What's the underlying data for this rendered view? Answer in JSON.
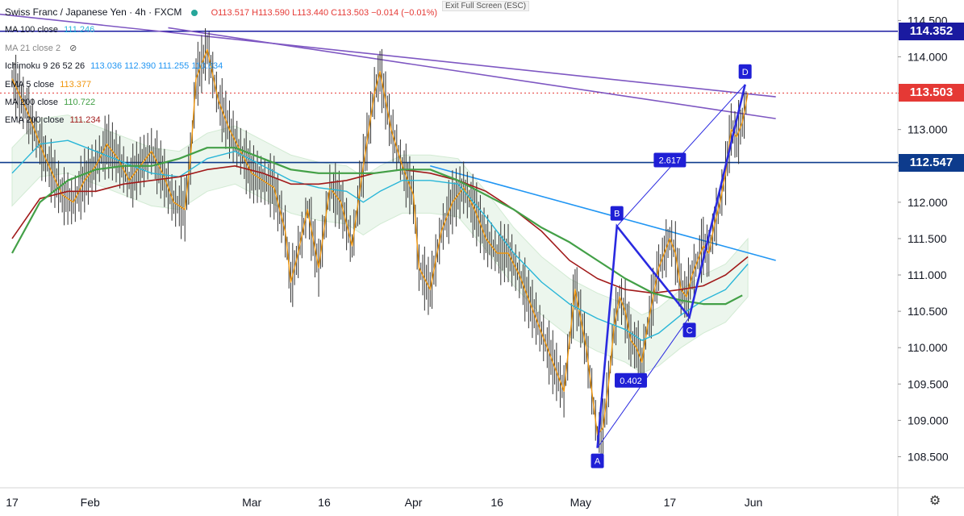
{
  "header": {
    "symbol": "Swiss Franc / Japanese Yen · 4h · FXCM",
    "ohlc": "O113.517  H113.590  L113.440  C113.503  −0.014 (−0.01%)",
    "exit_full_screen": "Exit Full Screen (ESC)"
  },
  "legend": [
    {
      "label": "MA 100 close",
      "value": "111.246",
      "color": "#29b6d8"
    },
    {
      "label": "MA 21 close 2",
      "value": "",
      "color": "#888888"
    },
    {
      "label": "Ichimoku 9 26 52 26",
      "value": "113.036  112.390  111.255  110.834",
      "color": "#2196f3"
    },
    {
      "label": "EMA 5 close",
      "value": "113.377",
      "color": "#f0960c"
    },
    {
      "label": "MA 200 close",
      "value": "110.722",
      "color": "#43a047"
    },
    {
      "label": "EMA 200 close",
      "value": "111.234",
      "color": "#a11a1a"
    }
  ],
  "price_tags": [
    {
      "value": "114.352",
      "color": "#1a1aa0",
      "price": 114.352
    },
    {
      "value": "113.503",
      "color": "#e53935",
      "price": 113.503
    },
    {
      "value": "112.547",
      "color": "#0d3b8c",
      "price": 112.547
    }
  ],
  "chart_data": {
    "type": "line",
    "title": "Swiss Franc / Japanese Yen · 4h · FXCM",
    "ylim": [
      108.25,
      114.56
    ],
    "y_ticks": [
      108.5,
      109.0,
      109.5,
      110.0,
      110.5,
      111.0,
      111.5,
      112.0,
      112.5,
      113.0,
      113.5,
      114.0,
      114.5
    ],
    "y_tick_labels": [
      "108.500",
      "109.000",
      "109.500",
      "110.000",
      "110.500",
      "111.000",
      "111.500",
      "112.000",
      "112.500",
      "113.000",
      "113.500",
      "114.000",
      "114.500"
    ],
    "x_ticks": [
      {
        "label": "17",
        "t": 0
      },
      {
        "label": "Feb",
        "t": 14
      },
      {
        "label": "Mar",
        "t": 43
      },
      {
        "label": "16",
        "t": 56
      },
      {
        "label": "Apr",
        "t": 72
      },
      {
        "label": "16",
        "t": 87
      },
      {
        "label": "May",
        "t": 102
      },
      {
        "label": "17",
        "t": 118
      },
      {
        "label": "Jun",
        "t": 133
      }
    ],
    "series": [
      {
        "name": "EMA 5 close",
        "color": "#f0960c",
        "width": 1.4,
        "values": [
          [
            0,
            113.7
          ],
          [
            3,
            113.2
          ],
          [
            6,
            112.6
          ],
          [
            9,
            112.1
          ],
          [
            11,
            112.0
          ],
          [
            13,
            112.3
          ],
          [
            15,
            112.5
          ],
          [
            17,
            112.8
          ],
          [
            19,
            112.6
          ],
          [
            21,
            112.3
          ],
          [
            23,
            112.5
          ],
          [
            25,
            112.7
          ],
          [
            27,
            112.4
          ],
          [
            29,
            112.0
          ],
          [
            31,
            111.9
          ],
          [
            32,
            112.6
          ],
          [
            33,
            113.7
          ],
          [
            35,
            114.1
          ],
          [
            37,
            113.4
          ],
          [
            39,
            113.0
          ],
          [
            41,
            112.7
          ],
          [
            43,
            112.4
          ],
          [
            45,
            112.3
          ],
          [
            47,
            112.2
          ],
          [
            49,
            111.6
          ],
          [
            50,
            110.9
          ],
          [
            51,
            111.2
          ],
          [
            53,
            111.9
          ],
          [
            55,
            111.1
          ],
          [
            57,
            112.2
          ],
          [
            59,
            112.0
          ],
          [
            61,
            111.4
          ],
          [
            63,
            112.5
          ],
          [
            65,
            113.5
          ],
          [
            66,
            113.8
          ],
          [
            68,
            113.0
          ],
          [
            70,
            112.5
          ],
          [
            72,
            112.1
          ],
          [
            73,
            111.1
          ],
          [
            75,
            110.8
          ],
          [
            77,
            111.6
          ],
          [
            79,
            112.0
          ],
          [
            81,
            112.2
          ],
          [
            83,
            111.9
          ],
          [
            85,
            111.5
          ],
          [
            87,
            111.3
          ],
          [
            89,
            111.3
          ],
          [
            91,
            111.0
          ],
          [
            93,
            110.6
          ],
          [
            95,
            110.2
          ],
          [
            97,
            109.8
          ],
          [
            99,
            109.4
          ],
          [
            101,
            110.8
          ],
          [
            103,
            110.0
          ],
          [
            105,
            108.8
          ],
          [
            106,
            108.9
          ],
          [
            107,
            109.5
          ],
          [
            108,
            110.3
          ],
          [
            109,
            110.7
          ],
          [
            110,
            110.5
          ],
          [
            111,
            110.1
          ],
          [
            112,
            110.0
          ],
          [
            113,
            109.8
          ],
          [
            114,
            110.3
          ],
          [
            115,
            110.7
          ],
          [
            116,
            111.1
          ],
          [
            117,
            111.3
          ],
          [
            118,
            111.5
          ],
          [
            119,
            111.3
          ],
          [
            120,
            110.8
          ],
          [
            121,
            110.7
          ],
          [
            122,
            111.0
          ],
          [
            123,
            111.2
          ],
          [
            124,
            111.4
          ],
          [
            125,
            111.3
          ],
          [
            126,
            111.7
          ],
          [
            127,
            112.0
          ],
          [
            128,
            112.4
          ],
          [
            129,
            113.0
          ],
          [
            130,
            112.9
          ],
          [
            131,
            113.1
          ],
          [
            132,
            113.5
          ]
        ]
      },
      {
        "name": "MA 100 close",
        "color": "#29b6d8",
        "width": 1.4,
        "values": [
          [
            0,
            112.4
          ],
          [
            5,
            112.8
          ],
          [
            10,
            112.85
          ],
          [
            15,
            112.7
          ],
          [
            20,
            112.55
          ],
          [
            25,
            112.4
          ],
          [
            30,
            112.35
          ],
          [
            35,
            112.6
          ],
          [
            40,
            112.7
          ],
          [
            45,
            112.5
          ],
          [
            50,
            112.3
          ],
          [
            55,
            112.2
          ],
          [
            60,
            112.15
          ],
          [
            63,
            112.0
          ],
          [
            66,
            112.15
          ],
          [
            70,
            112.3
          ],
          [
            75,
            112.3
          ],
          [
            80,
            112.25
          ],
          [
            85,
            111.8
          ],
          [
            90,
            111.3
          ],
          [
            95,
            110.9
          ],
          [
            100,
            110.6
          ],
          [
            105,
            110.4
          ],
          [
            110,
            110.25
          ],
          [
            113,
            110.1
          ],
          [
            116,
            110.2
          ],
          [
            120,
            110.45
          ],
          [
            124,
            110.65
          ],
          [
            128,
            110.8
          ],
          [
            132,
            111.15
          ]
        ]
      },
      {
        "name": "EMA 200 close",
        "color": "#a11a1a",
        "width": 1.6,
        "values": [
          [
            0,
            111.5
          ],
          [
            5,
            112.05
          ],
          [
            10,
            112.15
          ],
          [
            15,
            112.15
          ],
          [
            20,
            112.25
          ],
          [
            25,
            112.3
          ],
          [
            30,
            112.35
          ],
          [
            35,
            112.45
          ],
          [
            40,
            112.5
          ],
          [
            45,
            112.4
          ],
          [
            50,
            112.25
          ],
          [
            55,
            112.25
          ],
          [
            60,
            112.3
          ],
          [
            65,
            112.4
          ],
          [
            70,
            112.45
          ],
          [
            75,
            112.4
          ],
          [
            80,
            112.3
          ],
          [
            85,
            112.15
          ],
          [
            90,
            111.9
          ],
          [
            95,
            111.6
          ],
          [
            100,
            111.2
          ],
          [
            105,
            110.95
          ],
          [
            110,
            110.8
          ],
          [
            115,
            110.75
          ],
          [
            120,
            110.8
          ],
          [
            124,
            110.85
          ],
          [
            128,
            111.0
          ],
          [
            132,
            111.25
          ]
        ]
      },
      {
        "name": "MA 200 close",
        "color": "#43a047",
        "width": 2.2,
        "values": [
          [
            0,
            111.3
          ],
          [
            5,
            112.0
          ],
          [
            10,
            112.3
          ],
          [
            15,
            112.45
          ],
          [
            20,
            112.5
          ],
          [
            25,
            112.5
          ],
          [
            30,
            112.6
          ],
          [
            35,
            112.75
          ],
          [
            40,
            112.75
          ],
          [
            45,
            112.6
          ],
          [
            50,
            112.45
          ],
          [
            55,
            112.4
          ],
          [
            60,
            112.4
          ],
          [
            65,
            112.4
          ],
          [
            70,
            112.45
          ],
          [
            75,
            112.45
          ],
          [
            80,
            112.3
          ],
          [
            85,
            112.1
          ],
          [
            90,
            111.9
          ],
          [
            95,
            111.65
          ],
          [
            100,
            111.45
          ],
          [
            105,
            111.2
          ],
          [
            110,
            110.95
          ],
          [
            115,
            110.75
          ],
          [
            120,
            110.65
          ],
          [
            124,
            110.6
          ],
          [
            128,
            110.6
          ],
          [
            131,
            110.72
          ]
        ]
      }
    ],
    "trendlines": [
      {
        "color": "#7e57c2",
        "points": [
          [
            -4,
            114.6
          ],
          [
            137,
            113.45
          ]
        ]
      },
      {
        "color": "#7e57c2",
        "points": [
          [
            28,
            114.4
          ],
          [
            137,
            113.15
          ]
        ]
      },
      {
        "color": "#2196f3",
        "points": [
          [
            75,
            112.5
          ],
          [
            137,
            111.2
          ]
        ]
      }
    ],
    "harmonic": {
      "color": "#2a2ae0",
      "points": [
        {
          "label": "A",
          "t": 105,
          "y": 108.62
        },
        {
          "label": "B",
          "t": 108.5,
          "y": 111.67
        },
        {
          "label": "C",
          "t": 121.5,
          "y": 110.42
        },
        {
          "label": "D",
          "t": 131.5,
          "y": 113.62
        }
      ],
      "ratios": [
        {
          "label": "0.402",
          "t": 111,
          "y": 109.55
        },
        {
          "label": "2.617",
          "t": 118,
          "y": 112.58
        }
      ]
    }
  },
  "settings_icon": "gear-icon"
}
